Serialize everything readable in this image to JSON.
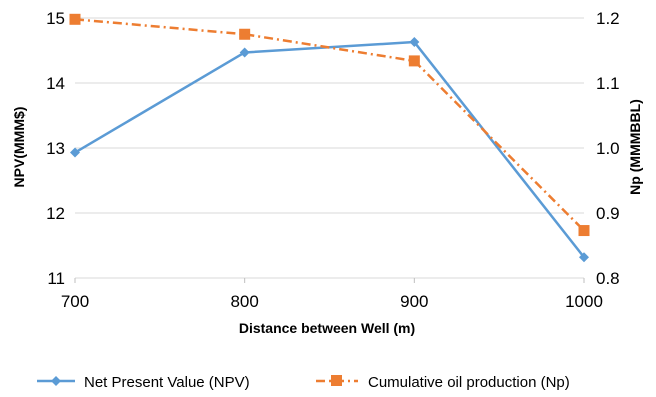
{
  "chart_data": {
    "type": "line",
    "xlabel": "Distance between Well (m)",
    "ylabel_left": "NPV(MMM$)",
    "ylabel_right": "Np (MMMBBL)",
    "x": [
      700,
      800,
      900,
      1000
    ],
    "x_tick_labels": [
      "700",
      "800",
      "900",
      "1000"
    ],
    "ylim_left": [
      11,
      15
    ],
    "y_ticks_left": [
      "11",
      "12",
      "13",
      "14",
      "15"
    ],
    "ylim_right": [
      0.8,
      1.2
    ],
    "y_ticks_right": [
      "0.8",
      "0.9",
      "1.0",
      "1.1",
      "1.2"
    ],
    "grid": true,
    "legend_position": "bottom",
    "series": [
      {
        "name": "Net Present Value (NPV)",
        "axis": "left",
        "values": [
          12.93,
          14.47,
          14.63,
          11.32
        ],
        "color": "#5b9bd5",
        "marker": "diamond",
        "line_style": "solid"
      },
      {
        "name": "Cumulative oil production (Np)",
        "axis": "right",
        "values": [
          1.198,
          1.175,
          1.134,
          0.873
        ],
        "color": "#ed7d31",
        "marker": "square",
        "line_style": "dash-dot"
      }
    ]
  }
}
